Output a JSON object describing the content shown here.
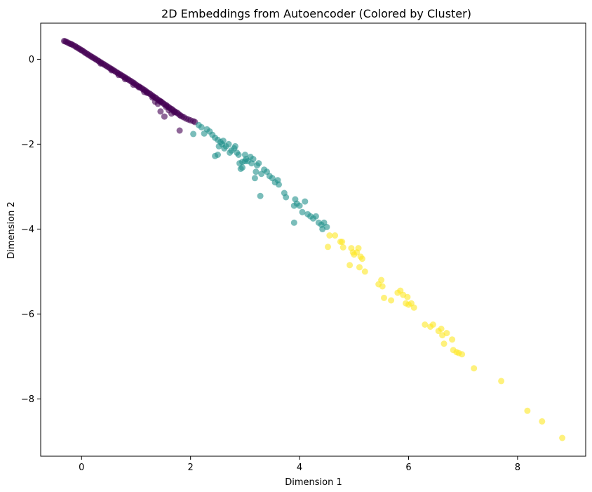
{
  "chart_data": {
    "type": "scatter",
    "title": "2D Embeddings from Autoencoder (Colored by Cluster)",
    "xlabel": "Dimension 1",
    "ylabel": "Dimension 2",
    "xlim": [
      -0.75,
      9.25
    ],
    "ylim": [
      -9.35,
      0.85
    ],
    "xticks": [
      0,
      2,
      4,
      6,
      8
    ],
    "yticks": [
      0,
      -2,
      -4,
      -6,
      -8
    ],
    "grid": false,
    "legend": "none",
    "colormap": "viridis",
    "series": [
      {
        "cluster": 0,
        "color": "#440154",
        "points": [
          [
            -0.32,
            0.43
          ],
          [
            -0.3,
            0.42
          ],
          [
            -0.28,
            0.41
          ],
          [
            -0.25,
            0.39
          ],
          [
            -0.22,
            0.37
          ],
          [
            -0.2,
            0.36
          ],
          [
            -0.18,
            0.35
          ],
          [
            -0.15,
            0.33
          ],
          [
            -0.12,
            0.31
          ],
          [
            -0.1,
            0.29
          ],
          [
            -0.07,
            0.27
          ],
          [
            -0.05,
            0.25
          ],
          [
            -0.02,
            0.23
          ],
          [
            0.0,
            0.21
          ],
          [
            0.02,
            0.2
          ],
          [
            0.05,
            0.17
          ],
          [
            0.07,
            0.15
          ],
          [
            0.1,
            0.13
          ],
          [
            0.12,
            0.11
          ],
          [
            0.15,
            0.09
          ],
          [
            0.17,
            0.07
          ],
          [
            0.2,
            0.05
          ],
          [
            0.22,
            0.03
          ],
          [
            0.25,
            0.01
          ],
          [
            0.27,
            -0.01
          ],
          [
            0.3,
            -0.03
          ],
          [
            0.32,
            -0.05
          ],
          [
            0.35,
            -0.07
          ],
          [
            0.37,
            -0.09
          ],
          [
            0.4,
            -0.11
          ],
          [
            0.42,
            -0.13
          ],
          [
            0.45,
            -0.15
          ],
          [
            0.47,
            -0.17
          ],
          [
            0.5,
            -0.19
          ],
          [
            0.52,
            -0.21
          ],
          [
            0.55,
            -0.23
          ],
          [
            0.57,
            -0.25
          ],
          [
            0.6,
            -0.27
          ],
          [
            0.62,
            -0.29
          ],
          [
            0.65,
            -0.31
          ],
          [
            0.67,
            -0.33
          ],
          [
            0.7,
            -0.35
          ],
          [
            0.72,
            -0.37
          ],
          [
            0.75,
            -0.39
          ],
          [
            0.77,
            -0.41
          ],
          [
            0.8,
            -0.43
          ],
          [
            0.82,
            -0.45
          ],
          [
            0.85,
            -0.47
          ],
          [
            0.87,
            -0.49
          ],
          [
            0.9,
            -0.51
          ],
          [
            0.92,
            -0.53
          ],
          [
            0.95,
            -0.55
          ],
          [
            0.97,
            -0.57
          ],
          [
            1.0,
            -0.6
          ],
          [
            1.02,
            -0.62
          ],
          [
            1.05,
            -0.64
          ],
          [
            1.07,
            -0.66
          ],
          [
            1.1,
            -0.68
          ],
          [
            1.12,
            -0.7
          ],
          [
            1.15,
            -0.72
          ],
          [
            1.17,
            -0.74
          ],
          [
            1.2,
            -0.77
          ],
          [
            1.22,
            -0.79
          ],
          [
            1.25,
            -0.81
          ],
          [
            1.27,
            -0.83
          ],
          [
            1.3,
            -0.86
          ],
          [
            1.32,
            -0.88
          ],
          [
            1.35,
            -0.9
          ],
          [
            1.37,
            -0.92
          ],
          [
            1.4,
            -0.95
          ],
          [
            1.42,
            -0.97
          ],
          [
            1.45,
            -0.99
          ],
          [
            1.47,
            -1.01
          ],
          [
            1.5,
            -1.04
          ],
          [
            1.52,
            -1.06
          ],
          [
            1.55,
            -1.08
          ],
          [
            1.57,
            -1.1
          ],
          [
            1.6,
            -1.13
          ],
          [
            1.62,
            -1.15
          ],
          [
            1.65,
            -1.17
          ],
          [
            1.67,
            -1.19
          ],
          [
            1.7,
            -1.22
          ],
          [
            1.72,
            -1.24
          ],
          [
            1.75,
            -1.26
          ],
          [
            1.77,
            -1.28
          ],
          [
            1.8,
            -1.31
          ],
          [
            1.82,
            -1.33
          ],
          [
            1.85,
            -1.35
          ],
          [
            1.88,
            -1.37
          ],
          [
            1.92,
            -1.4
          ],
          [
            1.96,
            -1.42
          ],
          [
            2.0,
            -1.44
          ],
          [
            2.05,
            -1.46
          ],
          [
            2.08,
            -1.48
          ],
          [
            0.55,
            -0.26
          ],
          [
            0.8,
            -0.47
          ],
          [
            1.05,
            -0.66
          ],
          [
            1.3,
            -0.9
          ],
          [
            1.55,
            -1.12
          ],
          [
            0.35,
            -0.1
          ],
          [
            0.95,
            -0.6
          ],
          [
            1.2,
            -0.79
          ],
          [
            1.45,
            -1.0
          ],
          [
            1.7,
            -1.25
          ],
          [
            1.35,
            -1.0
          ],
          [
            1.6,
            -1.2
          ],
          [
            1.45,
            -1.23
          ],
          [
            1.52,
            -1.35
          ],
          [
            1.8,
            -1.68
          ],
          [
            0.68,
            -0.37
          ],
          [
            1.15,
            -0.77
          ],
          [
            1.4,
            -1.05
          ],
          [
            1.65,
            -1.28
          ]
        ]
      },
      {
        "cluster": 1,
        "color": "#21918c",
        "points": [
          [
            2.05,
            -1.76
          ],
          [
            2.15,
            -1.55
          ],
          [
            2.2,
            -1.6
          ],
          [
            2.25,
            -1.75
          ],
          [
            2.3,
            -1.65
          ],
          [
            2.35,
            -1.7
          ],
          [
            2.4,
            -1.78
          ],
          [
            2.45,
            -1.85
          ],
          [
            2.5,
            -1.9
          ],
          [
            2.52,
            -2.05
          ],
          [
            2.55,
            -1.95
          ],
          [
            2.58,
            -2.0
          ],
          [
            2.6,
            -1.92
          ],
          [
            2.62,
            -2.1
          ],
          [
            2.65,
            -2.05
          ],
          [
            2.7,
            -2.0
          ],
          [
            2.72,
            -2.2
          ],
          [
            2.75,
            -2.15
          ],
          [
            2.5,
            -2.25
          ],
          [
            2.45,
            -2.28
          ],
          [
            2.8,
            -2.1
          ],
          [
            2.85,
            -2.2
          ],
          [
            2.88,
            -2.25
          ],
          [
            2.9,
            -2.45
          ],
          [
            2.92,
            -2.58
          ],
          [
            2.95,
            -2.55
          ],
          [
            3.0,
            -2.25
          ],
          [
            3.02,
            -2.35
          ],
          [
            3.05,
            -2.4
          ],
          [
            3.1,
            -2.3
          ],
          [
            3.12,
            -2.45
          ],
          [
            3.15,
            -2.35
          ],
          [
            3.18,
            -2.8
          ],
          [
            3.2,
            -2.65
          ],
          [
            3.22,
            -2.5
          ],
          [
            3.25,
            -2.45
          ],
          [
            3.28,
            -3.22
          ],
          [
            3.3,
            -2.7
          ],
          [
            3.35,
            -2.6
          ],
          [
            3.4,
            -2.65
          ],
          [
            3.45,
            -2.75
          ],
          [
            3.5,
            -2.8
          ],
          [
            3.55,
            -2.9
          ],
          [
            3.6,
            -2.85
          ],
          [
            3.72,
            -3.15
          ],
          [
            3.75,
            -3.25
          ],
          [
            3.9,
            -3.45
          ],
          [
            3.92,
            -3.3
          ],
          [
            3.95,
            -3.4
          ],
          [
            4.0,
            -3.45
          ],
          [
            4.05,
            -3.6
          ],
          [
            4.1,
            -3.35
          ],
          [
            4.15,
            -3.65
          ],
          [
            4.2,
            -3.7
          ],
          [
            4.25,
            -3.75
          ],
          [
            4.3,
            -3.7
          ],
          [
            4.35,
            -3.85
          ],
          [
            4.4,
            -3.9
          ],
          [
            4.42,
            -4.0
          ],
          [
            4.45,
            -3.85
          ],
          [
            4.5,
            -3.95
          ],
          [
            3.9,
            -3.85
          ],
          [
            3.0,
            -2.4
          ],
          [
            2.82,
            -2.05
          ],
          [
            3.62,
            -2.95
          ],
          [
            2.95,
            -2.42
          ]
        ]
      },
      {
        "cluster": 2,
        "color": "#fde725",
        "points": [
          [
            4.52,
            -4.42
          ],
          [
            4.55,
            -4.15
          ],
          [
            4.65,
            -4.15
          ],
          [
            4.75,
            -4.3
          ],
          [
            4.78,
            -4.3
          ],
          [
            4.8,
            -4.43
          ],
          [
            4.92,
            -4.85
          ],
          [
            4.95,
            -4.45
          ],
          [
            4.98,
            -4.55
          ],
          [
            5.0,
            -4.6
          ],
          [
            5.05,
            -4.55
          ],
          [
            5.08,
            -4.45
          ],
          [
            5.1,
            -4.9
          ],
          [
            5.12,
            -4.65
          ],
          [
            5.15,
            -4.7
          ],
          [
            5.2,
            -5.0
          ],
          [
            5.45,
            -5.3
          ],
          [
            5.5,
            -5.2
          ],
          [
            5.52,
            -5.35
          ],
          [
            5.55,
            -5.62
          ],
          [
            5.68,
            -5.68
          ],
          [
            5.8,
            -5.5
          ],
          [
            5.85,
            -5.45
          ],
          [
            5.9,
            -5.55
          ],
          [
            5.95,
            -5.75
          ],
          [
            5.98,
            -5.6
          ],
          [
            6.0,
            -5.78
          ],
          [
            6.05,
            -5.75
          ],
          [
            6.1,
            -5.85
          ],
          [
            6.3,
            -6.25
          ],
          [
            6.4,
            -6.3
          ],
          [
            6.45,
            -6.25
          ],
          [
            6.55,
            -6.4
          ],
          [
            6.6,
            -6.35
          ],
          [
            6.62,
            -6.5
          ],
          [
            6.65,
            -6.7
          ],
          [
            6.7,
            -6.45
          ],
          [
            6.8,
            -6.6
          ],
          [
            6.82,
            -6.85
          ],
          [
            6.88,
            -6.9
          ],
          [
            6.92,
            -6.92
          ],
          [
            6.98,
            -6.95
          ],
          [
            7.2,
            -7.28
          ],
          [
            7.7,
            -7.58
          ],
          [
            8.18,
            -8.28
          ],
          [
            8.45,
            -8.53
          ],
          [
            8.82,
            -8.92
          ]
        ]
      }
    ]
  }
}
